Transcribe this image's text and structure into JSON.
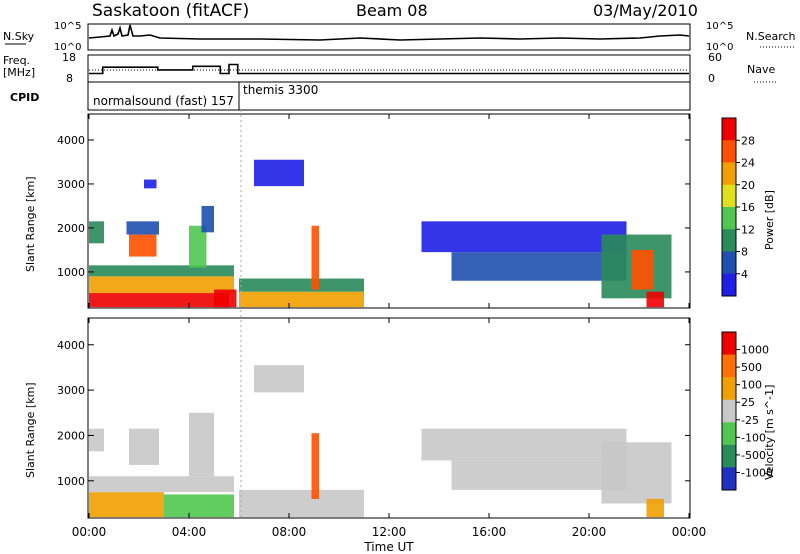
{
  "header": {
    "title": "Saskatoon (fitACF)",
    "beam": "Beam 08",
    "date": "03/May/2010"
  },
  "top_panels": {
    "nsky_label": "N.Sky",
    "nsky_ticks": [
      "10^5",
      "10^0"
    ],
    "nsearch_label": "N.Search",
    "nsearch_ticks": [
      "10^5",
      "10^0"
    ],
    "freq_label_1": "Freq.",
    "freq_label_2": "[MHz]",
    "freq_ticks": [
      "18",
      "8"
    ],
    "nave_label": "Nave",
    "nave_ticks": [
      "60",
      "0"
    ],
    "cpid_label": "CPID",
    "cpid_modes": [
      {
        "name": "normalsound (fast) 157",
        "start_hr": 0.0,
        "end_hr": 6.0
      },
      {
        "name": "themis 3300",
        "start_hr": 6.0,
        "end_hr": 24.0
      }
    ],
    "freq_steps": [
      {
        "start_hr": 0.0,
        "end_hr": 0.55,
        "mhz": 10.5
      },
      {
        "start_hr": 0.55,
        "end_hr": 2.75,
        "mhz": 14.0
      },
      {
        "start_hr": 2.75,
        "end_hr": 4.15,
        "mhz": 12.5
      },
      {
        "start_hr": 4.15,
        "end_hr": 5.25,
        "mhz": 14.5
      },
      {
        "start_hr": 5.25,
        "end_hr": 5.6,
        "mhz": 10.5
      },
      {
        "start_hr": 5.6,
        "end_hr": 5.95,
        "mhz": 15.5
      },
      {
        "start_hr": 5.95,
        "end_hr": 24.0,
        "mhz": 10.5
      }
    ]
  },
  "chart_data": [
    {
      "type": "heatmap",
      "name": "power",
      "ylabel": "Slant Range [km]",
      "x_range_hr": [
        0,
        24
      ],
      "ylim_km": [
        180,
        4590
      ],
      "yticks": [
        "1000",
        "2000",
        "3000",
        "4000"
      ],
      "colorbar_label": "Power [dB]",
      "colorbar_ticks": [
        "4",
        "8",
        "12",
        "16",
        "20",
        "24",
        "28"
      ],
      "colorbar_colors": [
        "#1e1ee6",
        "#1f4fb0",
        "#2a8a5a",
        "#50c850",
        "#e0e020",
        "#f0a000",
        "#ff5000",
        "#ee0000"
      ],
      "regions": [
        {
          "t0": 0.0,
          "t1": 0.6,
          "r0": 1650,
          "r1": 2150,
          "color": "#2a8a5a"
        },
        {
          "t0": 0.0,
          "t1": 5.6,
          "r0": 200,
          "r1": 520,
          "color": "#ee0000"
        },
        {
          "t0": 0.0,
          "t1": 5.8,
          "r0": 520,
          "r1": 900,
          "color": "#f0a000"
        },
        {
          "t0": 0.0,
          "t1": 5.8,
          "r0": 900,
          "r1": 1150,
          "color": "#2a8a5a"
        },
        {
          "t0": 1.6,
          "t1": 2.7,
          "r0": 1350,
          "r1": 1850,
          "color": "#ff5000"
        },
        {
          "t0": 1.5,
          "t1": 2.8,
          "r0": 1850,
          "r1": 2150,
          "color": "#1f4fb0"
        },
        {
          "t0": 2.2,
          "t1": 2.7,
          "r0": 2900,
          "r1": 3100,
          "color": "#1e1ee6"
        },
        {
          "t0": 4.0,
          "t1": 4.7,
          "r0": 1100,
          "r1": 2050,
          "color": "#50c850"
        },
        {
          "t0": 4.5,
          "t1": 5.0,
          "r0": 1900,
          "r1": 2500,
          "color": "#1f4fb0"
        },
        {
          "t0": 5.0,
          "t1": 5.9,
          "r0": 200,
          "r1": 600,
          "color": "#ee0000"
        },
        {
          "t0": 6.0,
          "t1": 11.0,
          "r0": 200,
          "r1": 550,
          "color": "#f0a000"
        },
        {
          "t0": 6.0,
          "t1": 11.0,
          "r0": 550,
          "r1": 850,
          "color": "#2a8a5a"
        },
        {
          "t0": 6.6,
          "t1": 8.6,
          "r0": 2950,
          "r1": 3550,
          "color": "#1e1ee6"
        },
        {
          "t0": 8.9,
          "t1": 9.2,
          "r0": 600,
          "r1": 2050,
          "color": "#ff5000"
        },
        {
          "t0": 13.3,
          "t1": 21.5,
          "r0": 1450,
          "r1": 2150,
          "color": "#1e1ee6"
        },
        {
          "t0": 14.5,
          "t1": 21.5,
          "r0": 800,
          "r1": 1450,
          "color": "#1f4fb0"
        },
        {
          "t0": 20.5,
          "t1": 23.3,
          "r0": 400,
          "r1": 1850,
          "color": "#2a8a5a"
        },
        {
          "t0": 21.7,
          "t1": 22.6,
          "r0": 600,
          "r1": 1500,
          "color": "#ff5000"
        },
        {
          "t0": 22.3,
          "t1": 23.0,
          "r0": 200,
          "r1": 550,
          "color": "#ee0000"
        }
      ]
    },
    {
      "type": "heatmap",
      "name": "velocity",
      "ylabel": "Slant Range [km]",
      "xlabel": "Time UT",
      "x_range_hr": [
        0,
        24
      ],
      "xticks": [
        "00:00",
        "04:00",
        "08:00",
        "12:00",
        "16:00",
        "20:00",
        "00:00"
      ],
      "ylim_km": [
        180,
        4590
      ],
      "yticks": [
        "1000",
        "2000",
        "3000",
        "4000"
      ],
      "colorbar_label": "Velocity [m s^-1]",
      "colorbar_ticks": [
        "1000",
        "500",
        "100",
        "25",
        "-25",
        "-100",
        "-500",
        "-1000"
      ],
      "colorbar_colors": [
        "#2030c0",
        "#2a8a5a",
        "#50c850",
        "#c8c8c8",
        "#f0a000",
        "#ff7000",
        "#ee0000"
      ],
      "regions": [
        {
          "t0": 0.0,
          "t1": 0.6,
          "r0": 1650,
          "r1": 2150,
          "color": "#c8c8c8"
        },
        {
          "t0": 0.0,
          "t1": 3.0,
          "r0": 200,
          "r1": 750,
          "color": "#f0a000"
        },
        {
          "t0": 3.0,
          "t1": 5.8,
          "r0": 200,
          "r1": 700,
          "color": "#50c850"
        },
        {
          "t0": 0.0,
          "t1": 5.8,
          "r0": 750,
          "r1": 1100,
          "color": "#c8c8c8"
        },
        {
          "t0": 1.6,
          "t1": 2.8,
          "r0": 1350,
          "r1": 2150,
          "color": "#c8c8c8"
        },
        {
          "t0": 4.0,
          "t1": 5.0,
          "r0": 1100,
          "r1": 2500,
          "color": "#c8c8c8"
        },
        {
          "t0": 6.0,
          "t1": 11.0,
          "r0": 200,
          "r1": 800,
          "color": "#c8c8c8"
        },
        {
          "t0": 6.6,
          "t1": 8.6,
          "r0": 2950,
          "r1": 3550,
          "color": "#c8c8c8"
        },
        {
          "t0": 8.9,
          "t1": 9.2,
          "r0": 600,
          "r1": 2050,
          "color": "#ff5000"
        },
        {
          "t0": 13.3,
          "t1": 21.5,
          "r0": 1450,
          "r1": 2150,
          "color": "#c8c8c8"
        },
        {
          "t0": 14.5,
          "t1": 21.5,
          "r0": 800,
          "r1": 1450,
          "color": "#c8c8c8"
        },
        {
          "t0": 20.5,
          "t1": 23.3,
          "r0": 500,
          "r1": 1850,
          "color": "#c8c8c8"
        },
        {
          "t0": 22.3,
          "t1": 23.0,
          "r0": 200,
          "r1": 600,
          "color": "#f0a000"
        }
      ]
    }
  ]
}
